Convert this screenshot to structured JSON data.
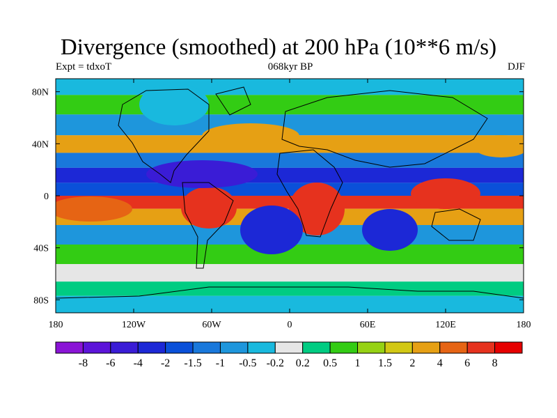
{
  "map": {
    "title": "Divergence (smoothed) at 200 hPa (10**6 m/s)",
    "experiment_label": "Expt = tdxoT",
    "period_label": "068kyr BP",
    "season_label": "DJF",
    "x_ticks": [
      "180",
      "120W",
      "60W",
      "0",
      "60E",
      "120E",
      "180"
    ],
    "y_ticks": [
      "80N",
      "40N",
      "0",
      "40S",
      "80S"
    ],
    "lon_range": [
      -180,
      180
    ],
    "lat_range": [
      -90,
      90
    ]
  },
  "colorbar": {
    "labels": [
      "-8",
      "-6",
      "-4",
      "-2",
      "-1.5",
      "-1",
      "-0.5",
      "-0.2",
      "0.2",
      "0.5",
      "1",
      "1.5",
      "2",
      "4",
      "6",
      "8"
    ],
    "colors": [
      "#8a14d6",
      "#5c14d9",
      "#3a1cd6",
      "#1c28d6",
      "#0a50d9",
      "#1978db",
      "#1e96dc",
      "#19b9de",
      "#e6e6e6",
      "#00cc82",
      "#33cc14",
      "#96d214",
      "#d2c814",
      "#e6a014",
      "#e66414",
      "#e6321e",
      "#e60000"
    ]
  },
  "field_bands": [
    {
      "lat": 85,
      "value": -0.5
    },
    {
      "lat": 70,
      "value": 0.5
    },
    {
      "lat": 55,
      "value": -1
    },
    {
      "lat": 38,
      "value": 2
    },
    {
      "lat": 28,
      "value": -1.5
    },
    {
      "lat": 15,
      "value": -4
    },
    {
      "lat": 5,
      "value": -2
    },
    {
      "lat": -5,
      "value": 6
    },
    {
      "lat": -15,
      "value": 2
    },
    {
      "lat": -30,
      "value": -1
    },
    {
      "lat": -45,
      "value": 0.5
    },
    {
      "lat": -60,
      "value": -0.2
    },
    {
      "lat": -72,
      "value": 0.2
    },
    {
      "lat": -82,
      "value": -0.5
    }
  ]
}
